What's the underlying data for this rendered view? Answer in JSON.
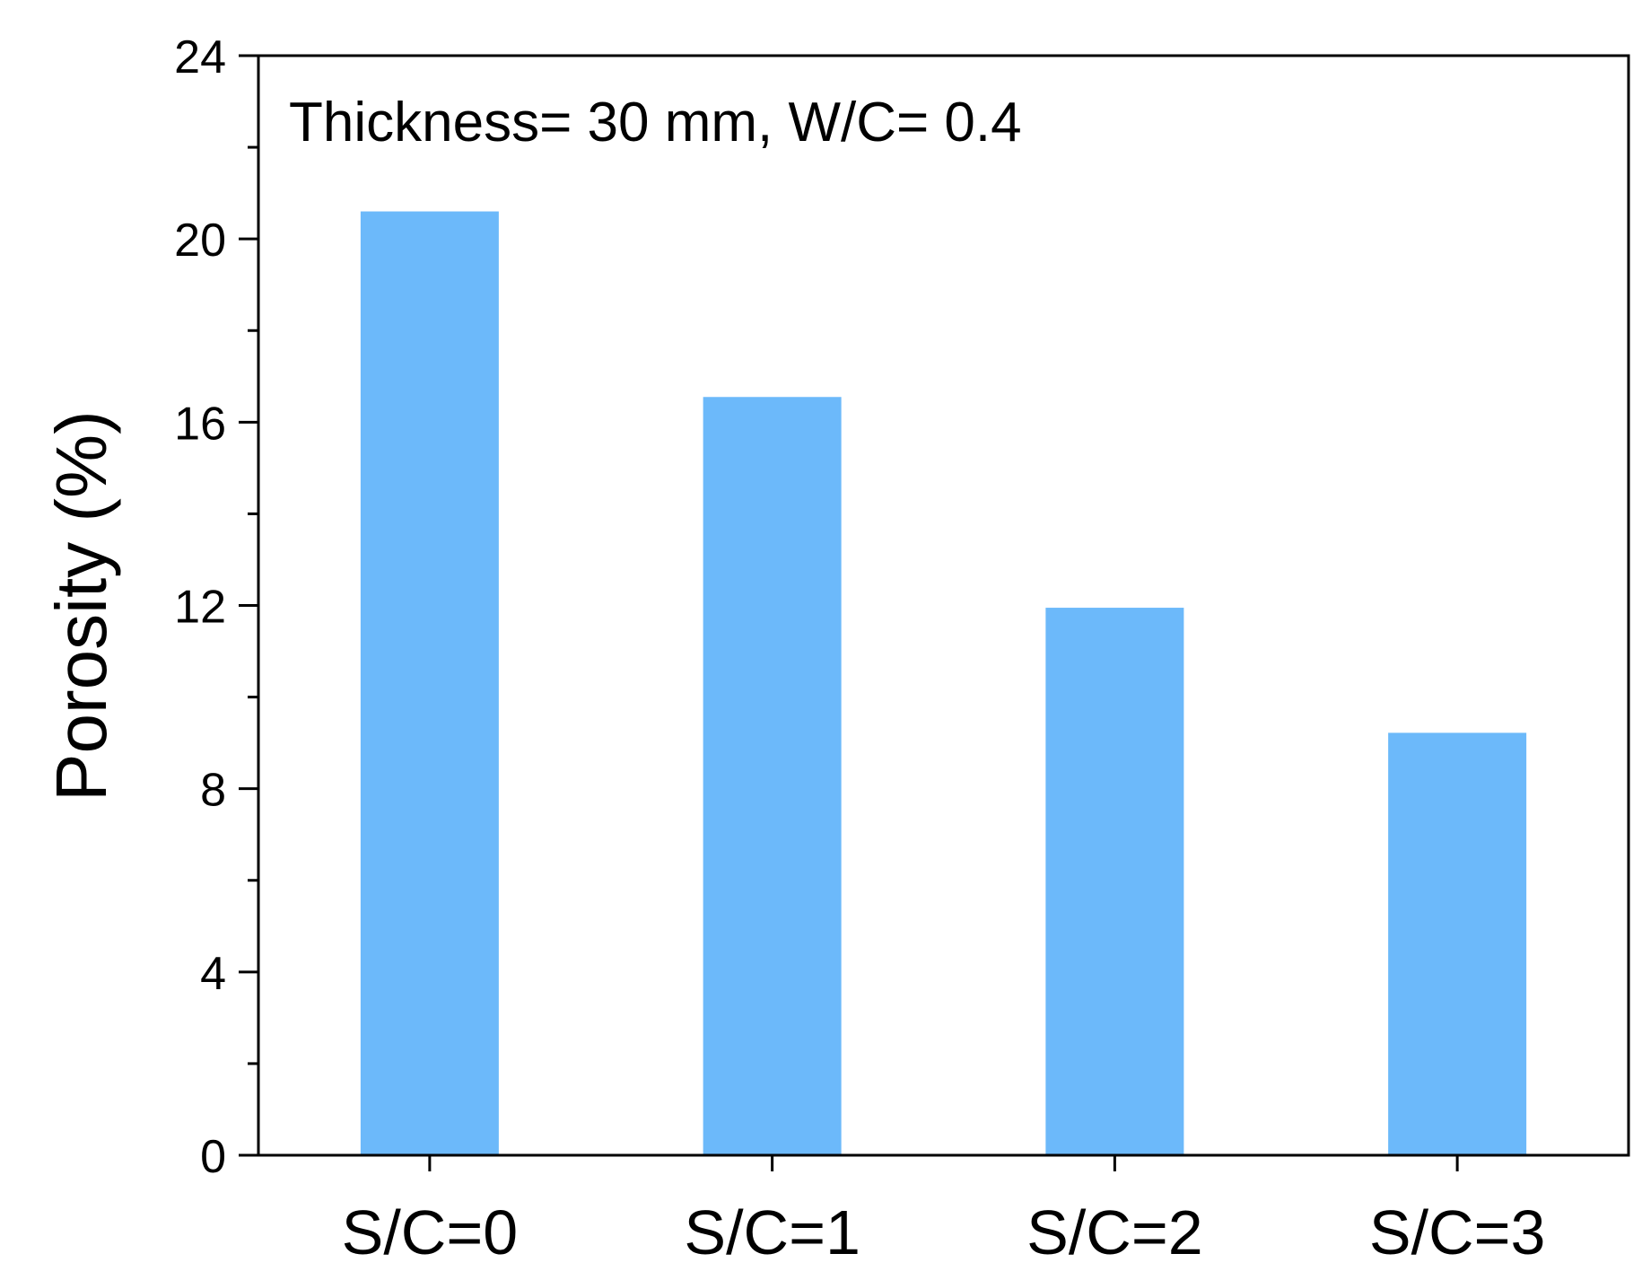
{
  "chart_data": {
    "type": "bar",
    "title": "",
    "xlabel": "",
    "ylabel": "Porosity (%)",
    "annotation": "Thickness= 30 mm, W/C= 0.4",
    "categories": [
      "S/C=0",
      "S/C=1",
      "S/C=2",
      "S/C=3"
    ],
    "values": [
      20.6,
      16.55,
      11.95,
      9.22
    ],
    "ylim": [
      0,
      24
    ],
    "yticks": [
      0,
      4,
      8,
      12,
      16,
      20,
      24
    ],
    "ytick_labels": [
      "0",
      "4",
      "8",
      "12",
      "16",
      "20",
      "24"
    ],
    "grid": false,
    "bar_color": "#6cb9fa"
  }
}
